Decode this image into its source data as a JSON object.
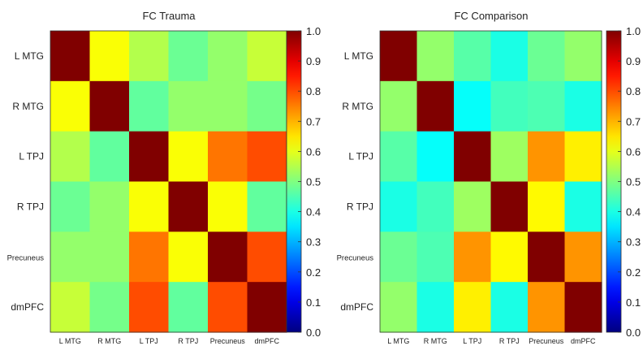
{
  "chart_data": [
    {
      "type": "heatmap",
      "title": "FC Trauma",
      "rows": [
        "L MTG",
        "R MTG",
        "L TPJ",
        "R TPJ",
        "Precuneus",
        "dmPFC"
      ],
      "columns": [
        "L MTG",
        "R MTG",
        "L TPJ",
        "R TPJ",
        "Precuneus",
        "dmPFC"
      ],
      "values": [
        [
          1.0,
          0.62,
          0.55,
          0.48,
          0.52,
          0.57
        ],
        [
          0.62,
          1.0,
          0.47,
          0.52,
          0.52,
          0.49
        ],
        [
          0.55,
          0.47,
          1.0,
          0.62,
          0.76,
          0.8
        ],
        [
          0.48,
          0.52,
          0.62,
          1.0,
          0.62,
          0.47
        ],
        [
          0.52,
          0.52,
          0.76,
          0.62,
          1.0,
          0.8
        ],
        [
          0.57,
          0.49,
          0.8,
          0.47,
          0.8,
          1.0
        ]
      ],
      "colorbar": {
        "min": 0.0,
        "max": 1.0,
        "ticks": [
          "0.0",
          "0.1",
          "0.2",
          "0.3",
          "0.4",
          "0.5",
          "0.6",
          "0.7",
          "0.8",
          "0.9",
          "1.0"
        ],
        "colormap": "jet"
      }
    },
    {
      "type": "heatmap",
      "title": "FC Comparison",
      "rows": [
        "L MTG",
        "R MTG",
        "L TPJ",
        "R TPJ",
        "Precuneus",
        "dmPFC"
      ],
      "columns": [
        "L MTG",
        "R MTG",
        "L TPJ",
        "R TPJ",
        "Precuneus",
        "dmPFC"
      ],
      "values": [
        [
          1.0,
          0.52,
          0.46,
          0.4,
          0.48,
          0.52
        ],
        [
          0.52,
          1.0,
          0.38,
          0.44,
          0.45,
          0.4
        ],
        [
          0.46,
          0.38,
          1.0,
          0.53,
          0.73,
          0.64
        ],
        [
          0.4,
          0.44,
          0.53,
          1.0,
          0.63,
          0.4
        ],
        [
          0.48,
          0.45,
          0.73,
          0.63,
          1.0,
          0.73
        ],
        [
          0.52,
          0.4,
          0.64,
          0.4,
          0.73,
          1.0
        ]
      ],
      "colorbar": {
        "min": 0.0,
        "max": 1.0,
        "ticks": [
          "0.0",
          "0.1",
          "0.2",
          "0.3",
          "0.4",
          "0.5",
          "0.6",
          "0.7",
          "0.8",
          "0.9",
          "1.0"
        ],
        "colormap": "jet"
      }
    }
  ]
}
